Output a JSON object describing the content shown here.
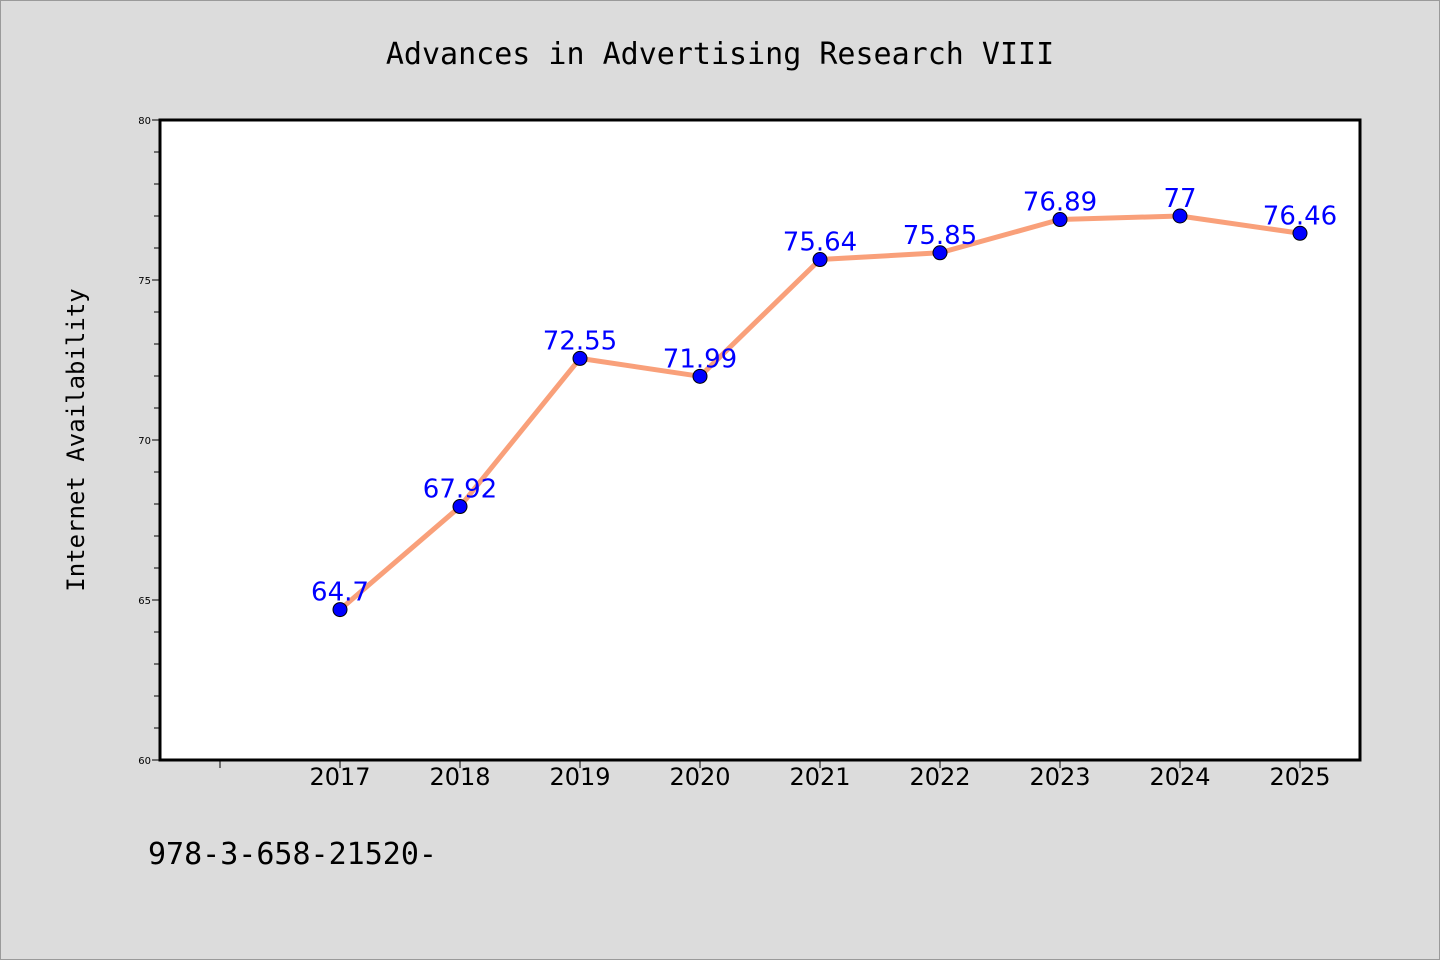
{
  "chart_data": {
    "type": "line",
    "title": "Advances in Advertising Research VIII",
    "xlabel": "",
    "ylabel": "Internet Availability",
    "categories": [
      "2017",
      "2018",
      "2019",
      "2020",
      "2021",
      "2022",
      "2023",
      "2024",
      "2025"
    ],
    "series": [
      {
        "values": [
          64.7,
          67.92,
          72.55,
          71.99,
          75.64,
          75.85,
          76.89,
          77,
          76.46
        ],
        "labels": [
          "64.7",
          "67.92",
          "72.55",
          "71.99",
          "75.64",
          "75.85",
          "76.89",
          "77",
          "76.46"
        ]
      }
    ],
    "ylim": [
      60,
      80
    ],
    "yticks": [
      "60",
      "65",
      "70",
      "75",
      "80"
    ],
    "grid": false,
    "legend": "none",
    "colors": {
      "line": "#f9a07a",
      "marker": "#0000ff",
      "label": "#0000ff",
      "background": "#dcdcdc",
      "plot_background": "#ffffff"
    }
  },
  "footer": {
    "text": "978-3-658-21520-"
  }
}
